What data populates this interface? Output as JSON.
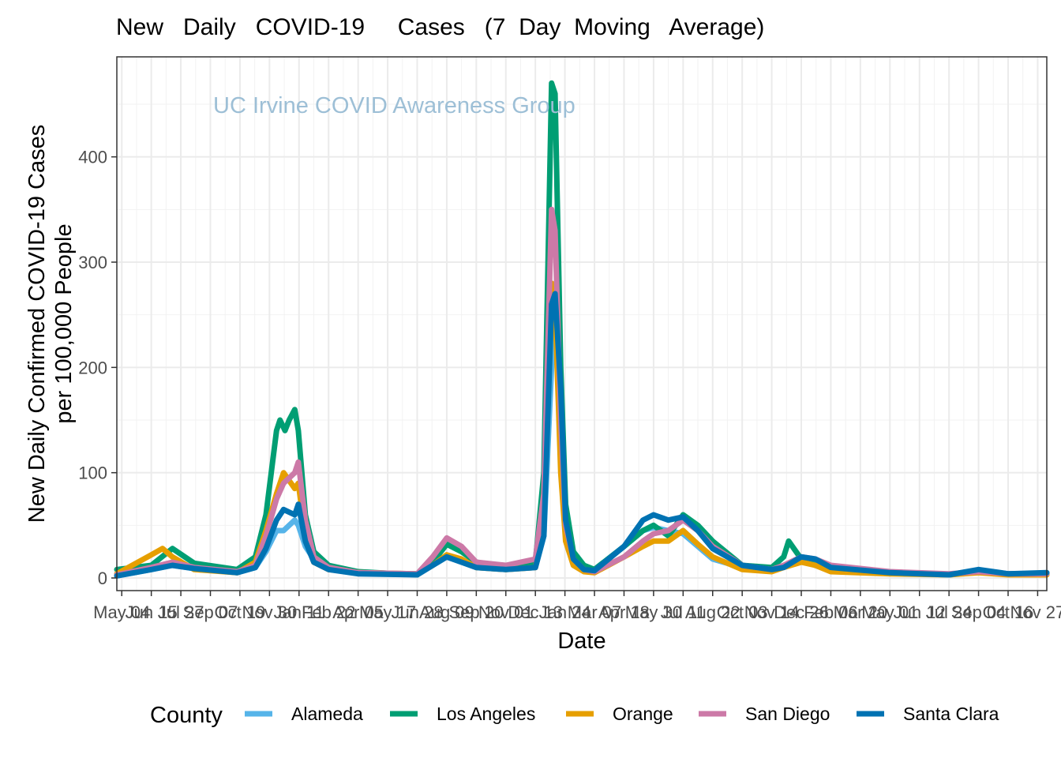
{
  "chart_data": {
    "type": "line",
    "title": "New   Daily   COVID-19     Cases   (7  Day  Moving   Average)",
    "xlabel": "Date",
    "ylabel_lines": [
      "New Daily Confirmed COVID-19 Cases",
      "per 100,000 People"
    ],
    "annotation": "UC Irvine COVID Awareness Group",
    "legend_title": "County",
    "legend_position": "bottom",
    "grid": true,
    "ylim": [
      -12,
      495
    ],
    "y_ticks": [
      0,
      100,
      200,
      300,
      400
    ],
    "x_ticks": [
      "May 04",
      "Jun 15",
      "Jul 27",
      "Sep 07",
      "Oct 19",
      "Nov 30",
      "Jan 11",
      "Feb 22",
      "Apr 05",
      "May 17",
      "Jun 28",
      "Aug 09",
      "Sep 20",
      "Nov 01",
      "Dec 13",
      "Jan 24",
      "Mar 07",
      "Apr 18",
      "May 30",
      "Jul 11",
      "Aug 22",
      "Oct 03",
      "Nov 14",
      "Dec 26",
      "Feb 06",
      "Mar 20",
      "May 01",
      "Jun 12",
      "Jul 24",
      "Sep 04",
      "Oct 16",
      "Nov 27"
    ],
    "x_tick_dates": [
      "2020-05-04",
      "2020-06-15",
      "2020-07-27",
      "2020-09-07",
      "2020-10-19",
      "2020-11-30",
      "2021-01-11",
      "2021-02-22",
      "2021-04-05",
      "2021-05-17",
      "2021-06-28",
      "2021-08-09",
      "2021-09-20",
      "2021-11-01",
      "2021-12-13",
      "2022-01-24",
      "2022-03-07",
      "2022-04-18",
      "2022-05-30",
      "2022-07-11",
      "2022-08-22",
      "2022-10-03",
      "2022-11-14",
      "2022-12-26",
      "2023-02-06",
      "2023-03-20",
      "2023-05-01",
      "2023-06-12",
      "2023-07-24",
      "2023-09-04",
      "2023-10-16",
      "2023-11-27"
    ],
    "xlim": [
      "2020-04-27",
      "2023-12-10"
    ],
    "series": [
      {
        "name": "Alameda",
        "color": "#56B4E9",
        "x": [
          "2020-04-27",
          "2020-06-15",
          "2020-07-15",
          "2020-08-15",
          "2020-10-15",
          "2020-11-10",
          "2020-11-25",
          "2020-12-10",
          "2020-12-20",
          "2021-01-05",
          "2021-01-10",
          "2021-01-20",
          "2021-02-01",
          "2021-02-22",
          "2021-04-05",
          "2021-06-28",
          "2021-07-20",
          "2021-08-09",
          "2021-08-30",
          "2021-09-20",
          "2021-11-01",
          "2021-12-13",
          "2021-12-25",
          "2022-01-05",
          "2022-01-10",
          "2022-01-18",
          "2022-01-25",
          "2022-02-05",
          "2022-02-20",
          "2022-03-07",
          "2022-04-18",
          "2022-05-15",
          "2022-05-30",
          "2022-06-20",
          "2022-07-11",
          "2022-08-01",
          "2022-08-22",
          "2022-10-03",
          "2022-11-14",
          "2022-12-01",
          "2022-12-26",
          "2023-01-15",
          "2023-02-06",
          "2023-05-01",
          "2023-07-24",
          "2023-09-04",
          "2023-10-16",
          "2023-12-10"
        ],
        "y": [
          2,
          8,
          12,
          9,
          5,
          10,
          25,
          45,
          45,
          55,
          50,
          30,
          18,
          10,
          5,
          4,
          12,
          20,
          15,
          10,
          8,
          10,
          40,
          200,
          245,
          180,
          60,
          20,
          10,
          8,
          30,
          45,
          48,
          45,
          42,
          30,
          18,
          10,
          8,
          12,
          18,
          15,
          10,
          5,
          3,
          6,
          4,
          4
        ]
      },
      {
        "name": "Los Angeles",
        "color": "#009E73",
        "x": [
          "2020-04-27",
          "2020-06-15",
          "2020-07-15",
          "2020-08-15",
          "2020-10-15",
          "2020-11-10",
          "2020-11-25",
          "2020-12-10",
          "2020-12-15",
          "2020-12-22",
          "2020-12-28",
          "2021-01-05",
          "2021-01-10",
          "2021-01-20",
          "2021-02-01",
          "2021-02-22",
          "2021-04-05",
          "2021-06-28",
          "2021-07-20",
          "2021-08-09",
          "2021-08-30",
          "2021-09-20",
          "2021-11-01",
          "2021-12-13",
          "2021-12-25",
          "2022-01-05",
          "2022-01-10",
          "2022-01-18",
          "2022-01-25",
          "2022-02-05",
          "2022-02-20",
          "2022-03-07",
          "2022-04-18",
          "2022-05-15",
          "2022-05-30",
          "2022-06-20",
          "2022-07-11",
          "2022-08-01",
          "2022-08-22",
          "2022-10-03",
          "2022-11-14",
          "2022-12-01",
          "2022-12-08",
          "2022-12-26",
          "2023-01-15",
          "2023-02-06",
          "2023-05-01",
          "2023-07-24",
          "2023-09-04",
          "2023-10-16",
          "2023-12-10"
        ],
        "y": [
          8,
          12,
          28,
          14,
          8,
          20,
          60,
          140,
          150,
          140,
          150,
          160,
          140,
          60,
          25,
          12,
          6,
          3,
          15,
          32,
          25,
          15,
          10,
          15,
          100,
          470,
          460,
          200,
          70,
          25,
          12,
          8,
          30,
          45,
          50,
          40,
          60,
          50,
          35,
          12,
          10,
          20,
          35,
          18,
          12,
          8,
          5,
          3,
          6,
          4,
          4
        ]
      },
      {
        "name": "Orange",
        "color": "#E69F00",
        "x": [
          "2020-04-27",
          "2020-06-15",
          "2020-07-01",
          "2020-07-15",
          "2020-08-15",
          "2020-10-15",
          "2020-11-10",
          "2020-11-25",
          "2020-12-10",
          "2020-12-20",
          "2021-01-05",
          "2021-01-10",
          "2021-01-20",
          "2021-02-01",
          "2021-02-22",
          "2021-04-05",
          "2021-06-28",
          "2021-07-20",
          "2021-08-09",
          "2021-08-30",
          "2021-09-20",
          "2021-11-01",
          "2021-12-13",
          "2021-12-25",
          "2022-01-05",
          "2022-01-10",
          "2022-01-18",
          "2022-01-25",
          "2022-02-05",
          "2022-02-20",
          "2022-03-07",
          "2022-04-18",
          "2022-05-15",
          "2022-05-30",
          "2022-06-20",
          "2022-07-11",
          "2022-08-01",
          "2022-08-22",
          "2022-10-03",
          "2022-11-14",
          "2022-12-01",
          "2022-12-26",
          "2023-01-15",
          "2023-02-06",
          "2023-05-01",
          "2023-07-24",
          "2023-09-04",
          "2023-10-16",
          "2023-12-10"
        ],
        "y": [
          4,
          22,
          28,
          20,
          8,
          5,
          15,
          45,
          80,
          100,
          85,
          90,
          40,
          15,
          8,
          5,
          4,
          12,
          22,
          18,
          10,
          8,
          10,
          50,
          280,
          260,
          100,
          35,
          12,
          6,
          5,
          20,
          30,
          35,
          35,
          45,
          32,
          20,
          8,
          6,
          10,
          15,
          12,
          6,
          4,
          3,
          5,
          3,
          3
        ]
      },
      {
        "name": "San Diego",
        "color": "#CC79A7",
        "x": [
          "2020-04-27",
          "2020-06-15",
          "2020-07-15",
          "2020-08-15",
          "2020-10-15",
          "2020-11-10",
          "2020-11-25",
          "2020-12-10",
          "2020-12-20",
          "2021-01-05",
          "2021-01-10",
          "2021-01-20",
          "2021-02-01",
          "2021-02-22",
          "2021-04-05",
          "2021-06-28",
          "2021-07-20",
          "2021-08-09",
          "2021-08-30",
          "2021-09-20",
          "2021-11-01",
          "2021-12-13",
          "2021-12-25",
          "2022-01-05",
          "2022-01-10",
          "2022-01-18",
          "2022-01-25",
          "2022-02-05",
          "2022-02-20",
          "2022-03-07",
          "2022-04-18",
          "2022-05-15",
          "2022-05-30",
          "2022-06-20",
          "2022-07-11",
          "2022-08-01",
          "2022-08-22",
          "2022-10-03",
          "2022-11-14",
          "2022-12-01",
          "2022-12-26",
          "2023-01-15",
          "2023-02-06",
          "2023-05-01",
          "2023-07-24",
          "2023-09-04",
          "2023-10-16",
          "2023-12-10"
        ],
        "y": [
          3,
          10,
          15,
          10,
          6,
          12,
          40,
          75,
          90,
          100,
          110,
          55,
          20,
          10,
          5,
          4,
          20,
          38,
          30,
          15,
          12,
          18,
          80,
          350,
          330,
          150,
          50,
          18,
          8,
          6,
          20,
          35,
          42,
          45,
          55,
          45,
          30,
          12,
          8,
          12,
          20,
          18,
          12,
          6,
          4,
          6,
          4,
          4
        ]
      },
      {
        "name": "Santa Clara",
        "color": "#0072B2",
        "x": [
          "2020-04-27",
          "2020-06-15",
          "2020-07-15",
          "2020-08-15",
          "2020-10-15",
          "2020-11-10",
          "2020-11-25",
          "2020-12-10",
          "2020-12-20",
          "2021-01-05",
          "2021-01-10",
          "2021-01-20",
          "2021-02-01",
          "2021-02-22",
          "2021-04-05",
          "2021-06-28",
          "2021-07-20",
          "2021-08-09",
          "2021-08-30",
          "2021-09-20",
          "2021-11-01",
          "2021-12-13",
          "2021-12-25",
          "2022-01-05",
          "2022-01-10",
          "2022-01-18",
          "2022-01-25",
          "2022-02-05",
          "2022-02-20",
          "2022-03-07",
          "2022-04-18",
          "2022-05-15",
          "2022-05-30",
          "2022-06-20",
          "2022-07-11",
          "2022-08-01",
          "2022-08-22",
          "2022-10-03",
          "2022-11-14",
          "2022-12-01",
          "2022-12-26",
          "2023-01-15",
          "2023-02-06",
          "2023-05-01",
          "2023-07-24",
          "2023-09-04",
          "2023-10-16",
          "2023-12-10"
        ],
        "y": [
          2,
          8,
          12,
          9,
          5,
          10,
          28,
          55,
          65,
          60,
          70,
          35,
          15,
          8,
          4,
          3,
          12,
          20,
          15,
          10,
          8,
          10,
          40,
          260,
          270,
          180,
          55,
          18,
          8,
          7,
          30,
          55,
          60,
          55,
          58,
          45,
          28,
          12,
          8,
          10,
          20,
          18,
          10,
          5,
          3,
          8,
          4,
          5
        ]
      }
    ]
  }
}
